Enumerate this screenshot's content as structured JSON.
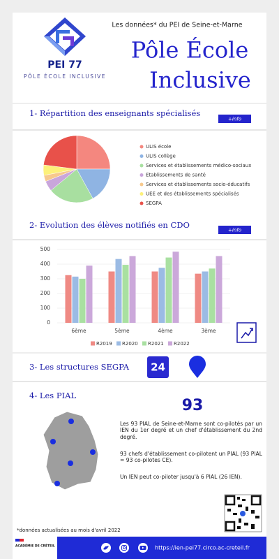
{
  "header": {
    "logo_name": "PEI 77",
    "logo_subtitle": "PÔLE ÉCOLE INCLUSIVE",
    "tagline": "Les données* du PEI de Seine-et-Marne",
    "title_line1": "Pôle École",
    "title_line2": "Inclusive"
  },
  "info_button": "+info",
  "chart_data": [
    {
      "type": "pie",
      "title": "1- Répartition des enseignants spécialisés",
      "categories": [
        "ULIS école",
        "ULIS collège",
        "Services et établissements médico-sociaux",
        "Etablissements de santé",
        "Services et établissements socio-éducatifs",
        "UEE et des établissements spécialisés",
        "SEGPA"
      ],
      "values": [
        25,
        17,
        22,
        5,
        3,
        5,
        23
      ],
      "colors": [
        "#f4877f",
        "#8fb4e3",
        "#a8dfa0",
        "#c9a6db",
        "#f7c98d",
        "#fdf17a",
        "#e8514a"
      ]
    },
    {
      "type": "bar",
      "title": "2- Evolution des élèves notifiés en CDO",
      "categories": [
        "6ème",
        "5ème",
        "4ème",
        "3ème"
      ],
      "series": [
        {
          "name": "R2019",
          "color": "#ef8a84",
          "values": [
            325,
            350,
            350,
            335
          ]
        },
        {
          "name": "R2020",
          "color": "#9bbbe4",
          "values": [
            315,
            435,
            375,
            350
          ]
        },
        {
          "name": "R2021",
          "color": "#a9e0a1",
          "values": [
            300,
            395,
            445,
            370
          ]
        },
        {
          "name": "R2022",
          "color": "#cba8da",
          "values": [
            390,
            455,
            485,
            455
          ]
        }
      ],
      "ylim": [
        0,
        500
      ],
      "yticks": [
        0,
        100,
        200,
        300,
        400,
        500
      ],
      "grid": true
    }
  ],
  "segpa": {
    "title": "3- Les structures SEGPA",
    "count": 24
  },
  "pial": {
    "title": "4- Les PIAL",
    "count": 93,
    "paragraphs": [
      "Les 93 PIAL de Seine-et-Marne sont co-pilotés par un IEN du 1er degré et un chef d'établissement du 2nd degré.",
      "93 chefs d'établissement co-pilotent un PIAL (93 PIAL = 93 co-pilotes CE).",
      "Un IEN peut co-piloter jusqu'à 6 PIAL (26 IEN)."
    ]
  },
  "footnote": "*données actualisées au mois d'avril 2022",
  "footer": {
    "academy": "ACADÉMIE DE CRÉTEIL",
    "url": "https://ien-pei77.circo.ac-creteil.fr"
  }
}
